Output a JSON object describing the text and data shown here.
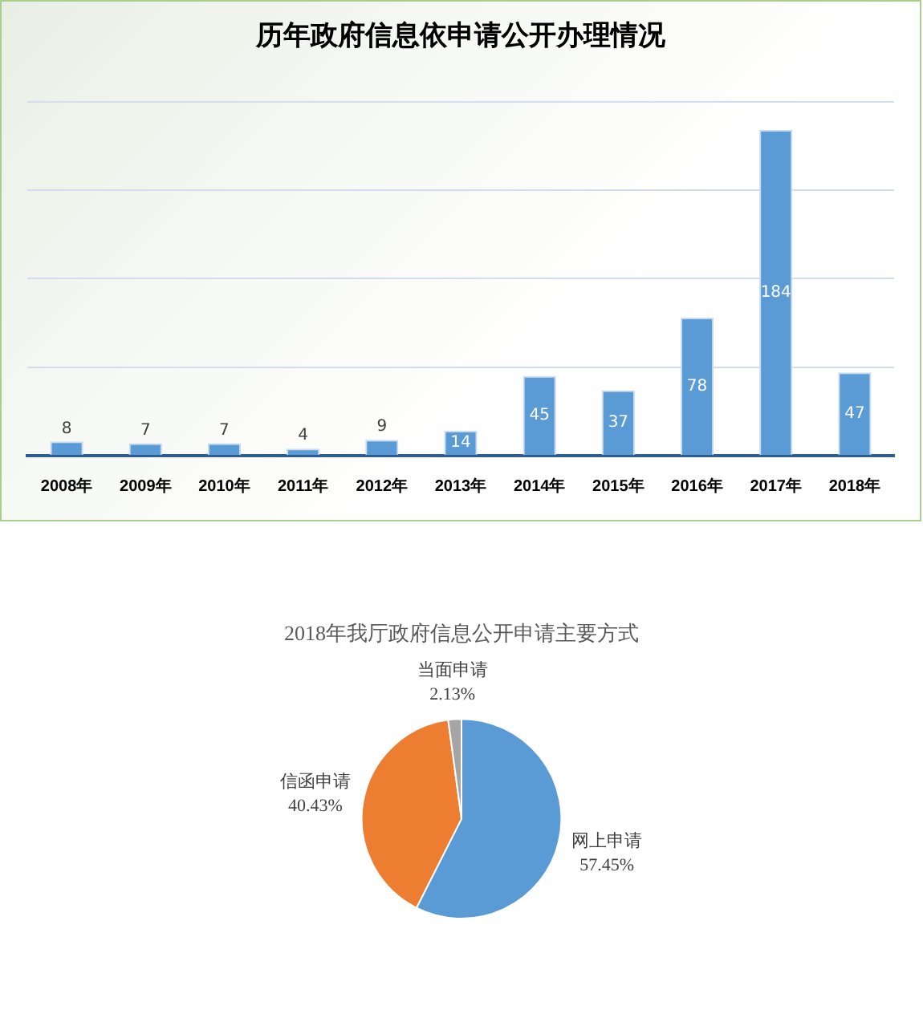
{
  "chart_data": [
    {
      "type": "bar",
      "title": "历年政府信息依申请公开办理情况",
      "categories": [
        "2008年",
        "2009年",
        "2010年",
        "2011年",
        "2012年",
        "2013年",
        "2014年",
        "2015年",
        "2016年",
        "2017年",
        "2018年"
      ],
      "values": [
        8,
        7,
        7,
        4,
        9,
        14,
        45,
        37,
        78,
        184,
        47
      ],
      "color": "#5b9bd5",
      "data_labels": true,
      "grid": "y",
      "tick_labels": "x"
    },
    {
      "type": "pie",
      "title": "2018年我厅政府信息公开申请主要方式",
      "categories": [
        "网上申请",
        "信函申请",
        "当面申请"
      ],
      "values": [
        57.45,
        40.43,
        2.13
      ],
      "colors": [
        "#5b9bd5",
        "#ed7d31",
        "#a5a5a5"
      ],
      "value_labels": [
        "57.45%",
        "40.43%",
        "2.13%"
      ]
    }
  ]
}
